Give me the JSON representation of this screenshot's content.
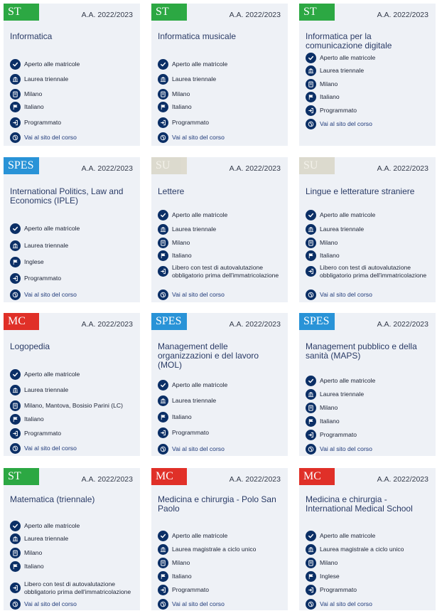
{
  "colors": {
    "ST": "#22a53a",
    "SPES": "#1f8fd6",
    "SU": "#dcd9cc",
    "MC": "#e0261e",
    "icon_bg": "#0b2f66",
    "card_bg": "#eef1f6"
  },
  "cards": [
    {
      "badge": "ST",
      "year": "A.A. 2022/2023",
      "title": "Informatica",
      "items": [
        {
          "icon": "check-icon",
          "text": "Aperto alle matricole"
        },
        {
          "icon": "bank-icon",
          "text": "Laurea triennale"
        },
        {
          "icon": "building-icon",
          "text": "Milano"
        },
        {
          "icon": "flag-icon",
          "text": "Italiano"
        },
        {
          "icon": "login-icon",
          "text": "Programmato"
        },
        {
          "icon": "globe-icon",
          "text": "Vai al sito del corso"
        }
      ]
    },
    {
      "badge": "ST",
      "year": "A.A. 2022/2023",
      "title": "Informatica musicale",
      "items": [
        {
          "icon": "check-icon",
          "text": "Aperto alle matricole"
        },
        {
          "icon": "bank-icon",
          "text": "Laurea triennale"
        },
        {
          "icon": "building-icon",
          "text": "Milano"
        },
        {
          "icon": "flag-icon",
          "text": "Italiano"
        },
        {
          "icon": "login-icon",
          "text": "Programmato"
        },
        {
          "icon": "globe-icon",
          "text": "Vai al sito del corso"
        }
      ]
    },
    {
      "badge": "ST",
      "year": "A.A. 2022/2023",
      "title": "Informatica per la comunicazione digitale",
      "items": [
        {
          "icon": "check-icon",
          "text": "Aperto alle matricole"
        },
        {
          "icon": "bank-icon",
          "text": "Laurea triennale"
        },
        {
          "icon": "building-icon",
          "text": "Milano"
        },
        {
          "icon": "flag-icon",
          "text": "Italiano"
        },
        {
          "icon": "login-icon",
          "text": "Programmato"
        },
        {
          "icon": "globe-icon",
          "text": "Vai al sito del corso"
        }
      ]
    },
    {
      "badge": "SPES",
      "year": "A.A. 2022/2023",
      "title": "International Politics, Law and Economics (IPLE)",
      "items": [
        {
          "icon": "check-icon",
          "text": "Aperto alle matricole"
        },
        {
          "icon": "bank-icon",
          "text": "Laurea triennale"
        },
        {
          "icon": "flag-icon",
          "text": "Inglese"
        },
        {
          "icon": "login-icon",
          "text": "Programmato"
        },
        {
          "icon": "globe-icon",
          "text": "Vai al sito del corso"
        }
      ]
    },
    {
      "badge": "SU",
      "year": "A.A. 2022/2023",
      "title": "Lettere",
      "items": [
        {
          "icon": "check-icon",
          "text": "Aperto alle matricole"
        },
        {
          "icon": "bank-icon",
          "text": "Laurea triennale"
        },
        {
          "icon": "building-icon",
          "text": "Milano"
        },
        {
          "icon": "flag-icon",
          "text": "Italiano"
        },
        {
          "icon": "login-icon",
          "text": "Libero con test di autovalutazione obbligatorio prima dell'immatricolazione"
        },
        {
          "icon": "globe-icon",
          "text": "Vai al sito del corso"
        }
      ]
    },
    {
      "badge": "SU",
      "year": "A.A. 2022/2023",
      "title": "Lingue e letterature straniere",
      "items": [
        {
          "icon": "check-icon",
          "text": "Aperto alle matricole"
        },
        {
          "icon": "bank-icon",
          "text": "Laurea triennale"
        },
        {
          "icon": "building-icon",
          "text": "Milano"
        },
        {
          "icon": "flag-icon",
          "text": "Italiano"
        },
        {
          "icon": "login-icon",
          "text": "Libero con test di autovalutazione obbligatorio prima dell'immatricolazione"
        },
        {
          "icon": "globe-icon",
          "text": "Vai al sito del corso"
        }
      ]
    },
    {
      "badge": "MC",
      "year": "A.A. 2022/2023",
      "title": "Logopedia",
      "items": [
        {
          "icon": "check-icon",
          "text": "Aperto alle matricole"
        },
        {
          "icon": "bank-icon",
          "text": "Laurea triennale"
        },
        {
          "icon": "building-icon",
          "text": "Milano, Mantova, Bosisio Parini (LC)"
        },
        {
          "icon": "flag-icon",
          "text": "Italiano"
        },
        {
          "icon": "login-icon",
          "text": "Programmato"
        },
        {
          "icon": "globe-icon",
          "text": "Vai al sito del corso"
        }
      ]
    },
    {
      "badge": "SPES",
      "year": "A.A. 2022/2023",
      "title": "Management delle organizzazioni e del lavoro (MOL)",
      "items": [
        {
          "icon": "check-icon",
          "text": "Aperto alle matricole"
        },
        {
          "icon": "bank-icon",
          "text": "Laurea triennale"
        },
        {
          "icon": "flag-icon",
          "text": "Italiano"
        },
        {
          "icon": "login-icon",
          "text": "Programmato"
        },
        {
          "icon": "globe-icon",
          "text": "Vai al sito del corso"
        }
      ]
    },
    {
      "badge": "SPES",
      "year": "A.A. 2022/2023",
      "title": "Management pubblico e della sanità (MAPS)",
      "items": [
        {
          "icon": "check-icon",
          "text": "Aperto alle matricole"
        },
        {
          "icon": "bank-icon",
          "text": "Laurea triennale"
        },
        {
          "icon": "building-icon",
          "text": "Milano"
        },
        {
          "icon": "flag-icon",
          "text": "Italiano"
        },
        {
          "icon": "login-icon",
          "text": "Programmato"
        },
        {
          "icon": "globe-icon",
          "text": "Vai al sito del corso"
        }
      ]
    },
    {
      "badge": "ST",
      "year": "A.A. 2022/2023",
      "title": "Matematica (triennale)",
      "items": [
        {
          "icon": "check-icon",
          "text": "Aperto alle matricole"
        },
        {
          "icon": "bank-icon",
          "text": "Laurea triennale"
        },
        {
          "icon": "building-icon",
          "text": "Milano"
        },
        {
          "icon": "flag-icon",
          "text": "Italiano"
        },
        {
          "icon": "login-icon",
          "text": "Libero con test di autovalutazione obbligatorio prima dell'immatricolazione"
        },
        {
          "icon": "globe-icon",
          "text": "Vai al sito del corso"
        }
      ]
    },
    {
      "badge": "MC",
      "year": "A.A. 2022/2023",
      "title": "Medicina e chirurgia - Polo San Paolo",
      "items": [
        {
          "icon": "check-icon",
          "text": "Aperto alle matricole"
        },
        {
          "icon": "bank-icon",
          "text": "Laurea magistrale a ciclo unico"
        },
        {
          "icon": "building-icon",
          "text": "Milano"
        },
        {
          "icon": "flag-icon",
          "text": "Italiano"
        },
        {
          "icon": "login-icon",
          "text": "Programmato"
        },
        {
          "icon": "globe-icon",
          "text": "Vai al sito del corso"
        }
      ]
    },
    {
      "badge": "MC",
      "year": "A.A. 2022/2023",
      "title": "Medicina e chirurgia - International Medical School",
      "items": [
        {
          "icon": "check-icon",
          "text": "Aperto alle matricole"
        },
        {
          "icon": "bank-icon",
          "text": "Laurea magistrale a ciclo unico"
        },
        {
          "icon": "building-icon",
          "text": "Milano"
        },
        {
          "icon": "flag-icon",
          "text": "Inglese"
        },
        {
          "icon": "login-icon",
          "text": "Programmato"
        },
        {
          "icon": "globe-icon",
          "text": "Vai al sito del corso"
        }
      ]
    }
  ]
}
